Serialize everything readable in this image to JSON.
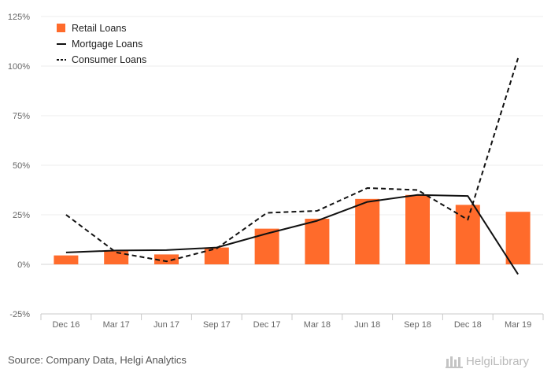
{
  "chart_data": {
    "type": "bar",
    "categories": [
      "Dec 16",
      "Mar 17",
      "Jun 17",
      "Sep 17",
      "Dec 17",
      "Mar 18",
      "Jun 18",
      "Sep 18",
      "Dec 18",
      "Mar 19"
    ],
    "series": [
      {
        "name": "Retail Loans",
        "kind": "bar",
        "color": "#ff6b2b",
        "values": [
          4.5,
          7.0,
          5.0,
          8.5,
          18.0,
          23.0,
          33.0,
          35.0,
          30.0,
          26.5
        ]
      },
      {
        "name": "Mortgage Loans",
        "kind": "line",
        "style": "solid",
        "color": "#111111",
        "values": [
          6.0,
          7.0,
          7.2,
          8.5,
          15.5,
          22.0,
          31.5,
          35.0,
          34.5,
          -5.0
        ]
      },
      {
        "name": "Consumer Loans",
        "kind": "line",
        "style": "dashed",
        "color": "#111111",
        "values": [
          25.0,
          6.0,
          1.5,
          8.0,
          26.0,
          27.0,
          38.5,
          37.5,
          22.5,
          104.0
        ]
      }
    ],
    "y_ticks": [
      "125%",
      "100%",
      "75%",
      "50%",
      "25%",
      "0%",
      "-25%"
    ],
    "ylim": [
      -25,
      125
    ],
    "ytick_step": 25,
    "grid": true,
    "legend": "top-left",
    "title": "",
    "xlabel": "",
    "ylabel": ""
  },
  "footer": {
    "source": "Source: Company Data, Helgi Analytics",
    "brand": "HelgiLibrary"
  }
}
